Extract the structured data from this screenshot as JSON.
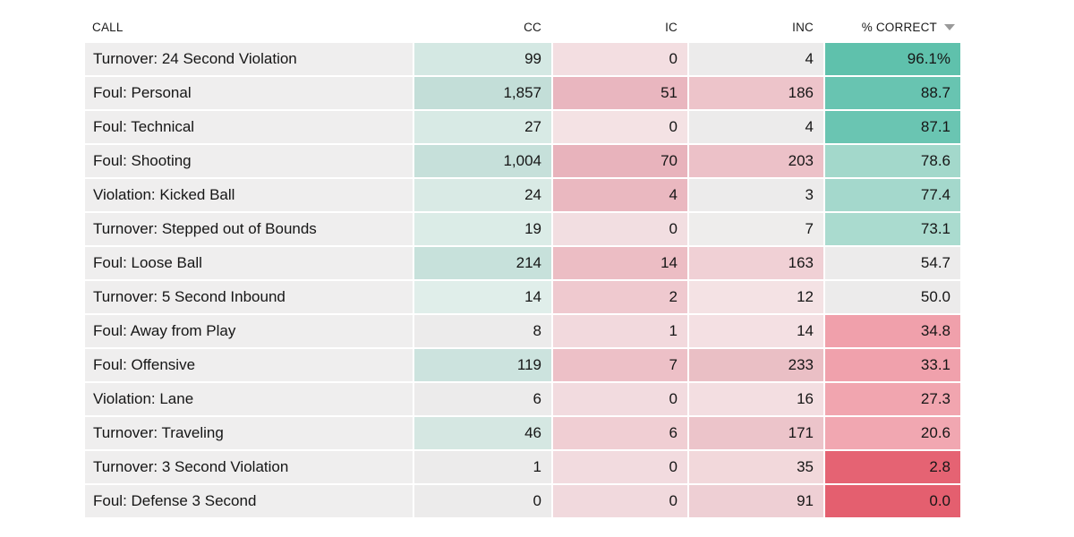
{
  "table": {
    "headers": {
      "call": "CALL",
      "cc": "CC",
      "ic": "IC",
      "inc": "INC",
      "pct": "% CORRECT"
    },
    "sort": {
      "column": "% CORRECT",
      "direction": "descending",
      "icon": "triangle-down-icon",
      "icon_color": "#9a9a9a"
    },
    "colors": {
      "page_bg": "#ffffff",
      "call_cell_bg": "#efeeee",
      "neutral_cell_bg": "#ecebeb",
      "teal_strong": "#5fc1ac",
      "red_strong": "#e45f6f",
      "text": "#161616",
      "header_text": "#1b1b1b"
    },
    "rows": [
      {
        "call": "Turnover: 24 Second Violation",
        "cc": "99",
        "ic": "0",
        "inc": "4",
        "pct": "96.1%",
        "cc_bg": "#d4e8e3",
        "ic_bg": "#f3dee1",
        "inc_bg": "#ecebeb",
        "pct_bg": "#5fc1ac"
      },
      {
        "call": "Foul: Personal",
        "cc": "1,857",
        "ic": "51",
        "inc": "186",
        "pct": "88.7",
        "cc_bg": "#c3ded8",
        "ic_bg": "#e9b6bf",
        "inc_bg": "#edc4ca",
        "pct_bg": "#68c4b1"
      },
      {
        "call": "Foul: Technical",
        "cc": "27",
        "ic": "0",
        "inc": "4",
        "pct": "87.1",
        "cc_bg": "#d8eae5",
        "ic_bg": "#f4e2e4",
        "inc_bg": "#ecebeb",
        "pct_bg": "#6ac5b2"
      },
      {
        "call": "Foul: Shooting",
        "cc": "1,004",
        "ic": "70",
        "inc": "203",
        "pct": "78.6",
        "cc_bg": "#c6e0da",
        "ic_bg": "#e8b3bc",
        "inc_bg": "#ecc1c8",
        "pct_bg": "#a3d8cb"
      },
      {
        "call": "Violation: Kicked Ball",
        "cc": "24",
        "ic": "4",
        "inc": "3",
        "pct": "77.4",
        "cc_bg": "#d9eae5",
        "ic_bg": "#eab8c0",
        "inc_bg": "#ecebeb",
        "pct_bg": "#a4d8cc"
      },
      {
        "call": "Turnover: Stepped out of Bounds",
        "cc": "19",
        "ic": "0",
        "inc": "7",
        "pct": "73.1",
        "cc_bg": "#dbece7",
        "ic_bg": "#f2dee1",
        "inc_bg": "#eeedec",
        "pct_bg": "#aadbcf"
      },
      {
        "call": "Foul: Loose Ball",
        "cc": "214",
        "ic": "14",
        "inc": "163",
        "pct": "54.7",
        "cc_bg": "#c7e1db",
        "ic_bg": "#ecbdc4",
        "inc_bg": "#f0d0d5",
        "pct_bg": "#ecebeb"
      },
      {
        "call": "Turnover: 5 Second Inbound",
        "cc": "14",
        "ic": "2",
        "inc": "12",
        "pct": "50.0",
        "cc_bg": "#e0eeea",
        "ic_bg": "#efc9cf",
        "inc_bg": "#f4e2e4",
        "pct_bg": "#ecebeb"
      },
      {
        "call": "Foul: Away from Play",
        "cc": "8",
        "ic": "1",
        "inc": "14",
        "pct": "34.8",
        "cc_bg": "#ecebeb",
        "ic_bg": "#f2d9dd",
        "inc_bg": "#f4e0e3",
        "pct_bg": "#f0a0ab"
      },
      {
        "call": "Foul: Offensive",
        "cc": "119",
        "ic": "7",
        "inc": "233",
        "pct": "33.1",
        "cc_bg": "#cce3de",
        "ic_bg": "#edc0c7",
        "inc_bg": "#eabfc5",
        "pct_bg": "#f0a1ac"
      },
      {
        "call": "Violation: Lane",
        "cc": "6",
        "ic": "0",
        "inc": "16",
        "pct": "27.3",
        "cc_bg": "#ecebeb",
        "ic_bg": "#f2dbdf",
        "inc_bg": "#f3dee1",
        "pct_bg": "#f1a5af"
      },
      {
        "call": "Turnover: Traveling",
        "cc": "46",
        "ic": "6",
        "inc": "171",
        "pct": "20.6",
        "cc_bg": "#d5e7e2",
        "ic_bg": "#f0ced3",
        "inc_bg": "#ecc4ca",
        "pct_bg": "#f1a7b1"
      },
      {
        "call": "Turnover: 3 Second Violation",
        "cc": "1",
        "ic": "0",
        "inc": "35",
        "pct": "2.8",
        "cc_bg": "#ecebeb",
        "ic_bg": "#f2dbdf",
        "inc_bg": "#f2d8db",
        "pct_bg": "#e56373"
      },
      {
        "call": "Foul: Defense 3 Second",
        "cc": "0",
        "ic": "0",
        "inc": "91",
        "pct": "0.0",
        "cc_bg": "#ecebeb",
        "ic_bg": "#f1d9dd",
        "inc_bg": "#eecfd4",
        "pct_bg": "#e45f6f"
      }
    ]
  },
  "chart_data": {
    "type": "table",
    "title": "",
    "columns": [
      "CALL",
      "CC",
      "IC",
      "INC",
      "% CORRECT"
    ],
    "sorted_by": "% CORRECT descending",
    "categories": [
      "Turnover: 24 Second Violation",
      "Foul: Personal",
      "Foul: Technical",
      "Foul: Shooting",
      "Violation: Kicked Ball",
      "Turnover: Stepped out of Bounds",
      "Foul: Loose Ball",
      "Turnover: 5 Second Inbound",
      "Foul: Away from Play",
      "Foul: Offensive",
      "Violation: Lane",
      "Turnover: Traveling",
      "Turnover: 3 Second Violation",
      "Foul: Defense 3 Second"
    ],
    "series": [
      {
        "name": "CC",
        "values": [
          99,
          1857,
          27,
          1004,
          24,
          19,
          214,
          14,
          8,
          119,
          6,
          46,
          1,
          0
        ]
      },
      {
        "name": "IC",
        "values": [
          0,
          51,
          0,
          70,
          4,
          0,
          14,
          2,
          1,
          7,
          0,
          6,
          0,
          0
        ]
      },
      {
        "name": "INC",
        "values": [
          4,
          186,
          4,
          203,
          3,
          7,
          163,
          12,
          14,
          233,
          16,
          171,
          35,
          91
        ]
      },
      {
        "name": "% CORRECT",
        "values": [
          96.1,
          88.7,
          87.1,
          78.6,
          77.4,
          73.1,
          54.7,
          50.0,
          34.8,
          33.1,
          27.3,
          20.6,
          2.8,
          0.0
        ]
      }
    ],
    "layout_hints": {
      "heatmap": "CC column shaded teal by value; IC and INC columns shaded pink/red by value; % CORRECT shaded diverging teal (high) to red (low) with gray midrange",
      "grid": "white 2px gutters between cells"
    }
  }
}
